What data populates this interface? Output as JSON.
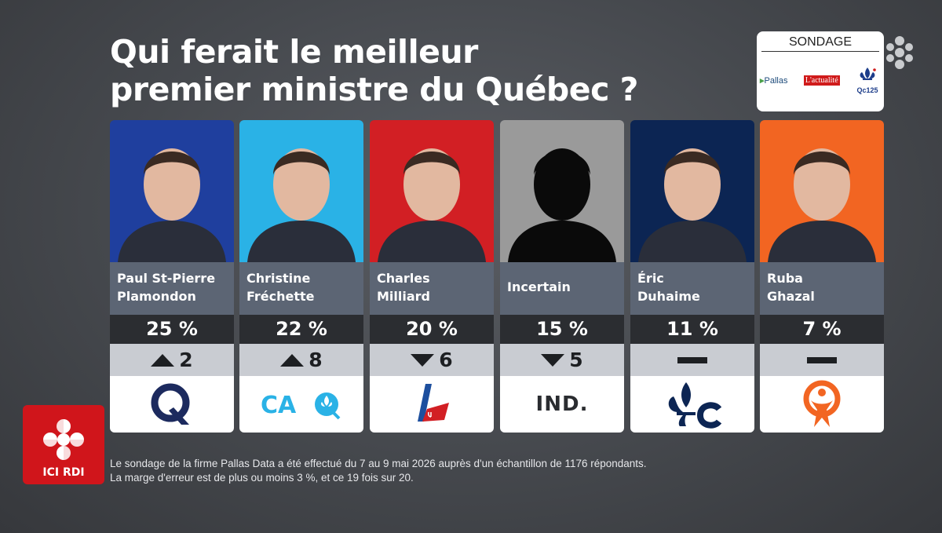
{
  "title_line1": "Qui ferait le meilleur",
  "title_line2": "premier ministre du Québec ?",
  "badge": {
    "label": "SONDAGE",
    "pallas": "Pallas",
    "actualite": "L'actualité",
    "qc125": "Qc125"
  },
  "broadcaster": {
    "label": "ICI RDI"
  },
  "footnote_line1": "Le sondage de la firme Pallas Data a été effectué du 7 au 9 mai 2026 auprès d'un échantillon de 1176 répondants.",
  "footnote_line2": "La marge d'erreur est de plus ou moins 3 %, et ce 19 fois sur 20.",
  "colors": {
    "pq": "#1f3f9e",
    "caq": "#2ab2e6",
    "plq": "#d21f24",
    "ind": "#9a9a9a",
    "pcq": "#0c2553",
    "qs": "#f26522"
  },
  "chart_data": {
    "type": "bar",
    "title": "Qui ferait le meilleur premier ministre du Québec ?",
    "categories": [
      "Paul St-Pierre Plamondon",
      "Christine Fréchette",
      "Charles Milliard",
      "Incertain",
      "Éric Duhaime",
      "Ruba Ghazal"
    ],
    "values": [
      25,
      22,
      20,
      15,
      11,
      7
    ],
    "unit": "%",
    "candidates": [
      {
        "name_l1": "Paul St-Pierre",
        "name_l2": "Plamondon",
        "value": 25,
        "pct_label": "25 %",
        "change": "up",
        "change_value": "2",
        "party": "PQ",
        "party_logo": "pq-logo",
        "bg": "#1f3f9e"
      },
      {
        "name_l1": "Christine",
        "name_l2": "Fréchette",
        "value": 22,
        "pct_label": "22 %",
        "change": "up",
        "change_value": "8",
        "party": "CAQ",
        "party_logo": "caq-logo",
        "bg": "#2ab2e6"
      },
      {
        "name_l1": "Charles",
        "name_l2": "Milliard",
        "value": 20,
        "pct_label": "20 %",
        "change": "down",
        "change_value": "6",
        "party": "PLQ",
        "party_logo": "plq-logo",
        "bg": "#d21f24"
      },
      {
        "name_l1": "Incertain",
        "name_l2": "",
        "value": 15,
        "pct_label": "15 %",
        "change": "down",
        "change_value": "5",
        "party": "IND.",
        "party_logo": "ind-label",
        "bg": "#9a9a9a"
      },
      {
        "name_l1": "Éric",
        "name_l2": "Duhaime",
        "value": 11,
        "pct_label": "11 %",
        "change": "none",
        "change_value": "",
        "party": "PCQ",
        "party_logo": "pcq-logo",
        "bg": "#0c2553"
      },
      {
        "name_l1": "Ruba",
        "name_l2": "Ghazal",
        "value": 7,
        "pct_label": "7 %",
        "change": "none",
        "change_value": "",
        "party": "QS",
        "party_logo": "qs-logo",
        "bg": "#f26522"
      }
    ]
  }
}
